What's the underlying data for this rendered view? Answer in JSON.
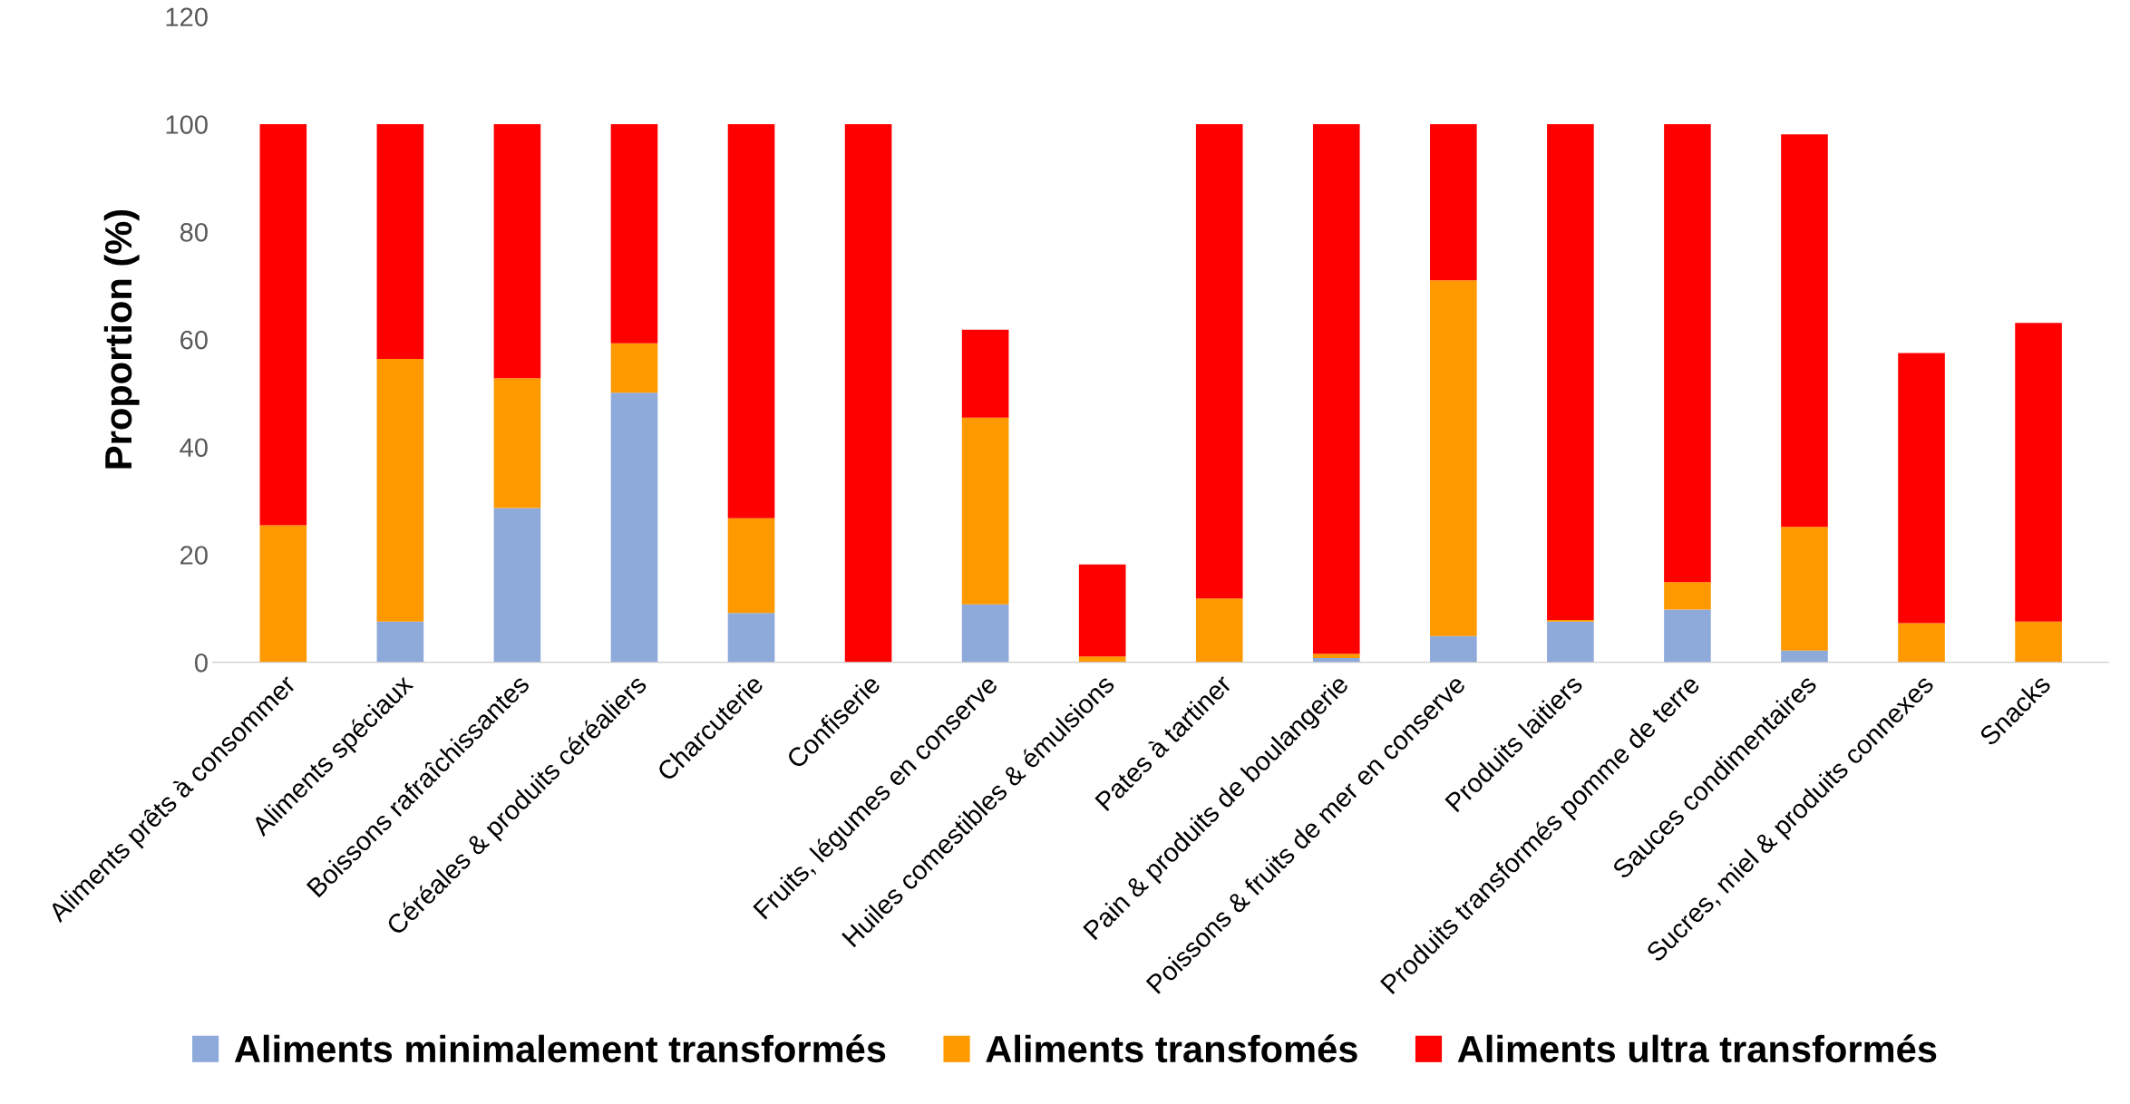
{
  "chart_data": {
    "type": "bar",
    "stacked": true,
    "ylabel": "Proportion (%)",
    "categories": [
      "Aliments prêts à consommer",
      "Aliments spéciaux",
      "Boissons rafraîchissantes",
      "Céréales & produits céréaliers",
      "Charcuterie",
      "Confiserie",
      "Fruits, légumes en conserve",
      "Huiles comestibles & émulsions",
      "Pates à tartiner",
      "Pain & produits de boulangerie",
      "Poissons & fruits de mer en conserve",
      "Produits laitiers",
      "Produits transformés pomme de terre",
      "Sauces condimentaires",
      "Sucres, miel & produits connexes",
      "Snacks"
    ],
    "series": [
      {
        "name": "Aliments minimalement transformés",
        "color": "#8eaadb",
        "values": [
          0,
          7.6,
          28.7,
          50.1,
          9.2,
          0,
          10.8,
          0,
          0,
          0.8,
          4.9,
          7.6,
          9.8,
          2.2,
          0,
          0
        ]
      },
      {
        "name": "Aliments transfomés",
        "color": "#ff9900",
        "values": [
          25.5,
          48.8,
          24.1,
          9.2,
          17.6,
          0,
          34.7,
          1.1,
          11.9,
          0.8,
          66.1,
          0.3,
          5.1,
          23,
          7.3,
          7.6
        ]
      },
      {
        "name": "Aliments ultra transformés",
        "color": "#ff0000",
        "values": [
          74.5,
          43.6,
          47.2,
          40.7,
          73.2,
          100,
          16.3,
          17.1,
          88.1,
          98.4,
          29,
          92.1,
          85.1,
          72.9,
          50.2,
          55.5
        ]
      }
    ],
    "ylim": [
      0,
      120
    ],
    "yticks": [
      0,
      20,
      40,
      60,
      80,
      100,
      120
    ],
    "grid": false,
    "legend": "bottom"
  }
}
